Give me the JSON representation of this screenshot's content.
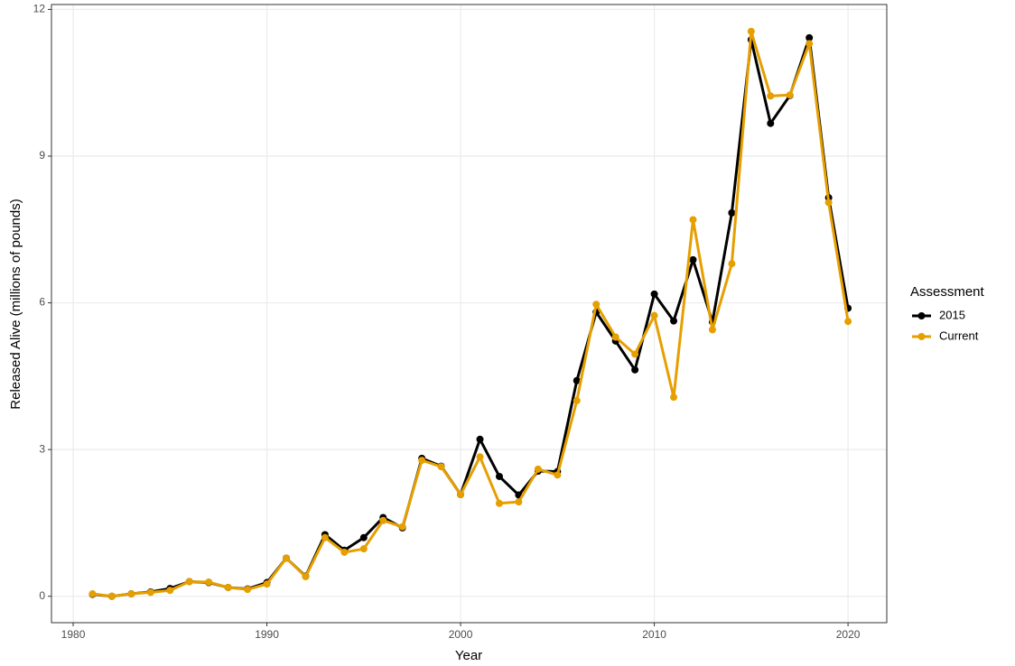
{
  "chart_data": {
    "type": "line",
    "x_label": "Year",
    "y_label": "Released Alive (millions of pounds)",
    "x": [
      1981,
      1982,
      1983,
      1984,
      1985,
      1986,
      1987,
      1988,
      1989,
      1990,
      1991,
      1992,
      1993,
      1994,
      1995,
      1996,
      1997,
      1998,
      1999,
      2000,
      2001,
      2002,
      2003,
      2004,
      2005,
      2006,
      2007,
      2008,
      2009,
      2010,
      2011,
      2012,
      2013,
      2014,
      2015,
      2016,
      2017,
      2018,
      2019,
      2020
    ],
    "series": [
      {
        "name": "2015",
        "color": "#000000",
        "values": [
          0.04,
          0.0,
          0.05,
          0.09,
          0.16,
          0.3,
          0.28,
          0.18,
          0.15,
          0.28,
          0.78,
          0.41,
          1.26,
          0.94,
          1.2,
          1.61,
          1.4,
          2.82,
          2.66,
          2.08,
          3.21,
          2.45,
          2.07,
          2.56,
          2.55,
          4.41,
          5.81,
          5.22,
          4.63,
          6.18,
          5.63,
          6.88,
          5.61,
          7.84,
          11.38,
          9.67,
          10.24,
          11.42,
          8.15,
          5.89
        ]
      },
      {
        "name": "Current",
        "color": "#E69F00",
        "values": [
          0.05,
          0.0,
          0.05,
          0.08,
          0.12,
          0.3,
          0.29,
          0.18,
          0.14,
          0.25,
          0.78,
          0.4,
          1.2,
          0.9,
          0.97,
          1.55,
          1.42,
          2.78,
          2.65,
          2.08,
          2.85,
          1.9,
          1.93,
          2.6,
          2.48,
          4.0,
          5.97,
          5.3,
          4.95,
          5.74,
          4.07,
          7.7,
          5.45,
          6.8,
          11.55,
          10.23,
          10.25,
          11.3,
          8.05,
          5.62
        ]
      }
    ],
    "legend_title": "Assessment",
    "legend": "right",
    "xlim": [
      1978.88,
      2022.0
    ],
    "xticks": [
      1980,
      1990,
      2000,
      2010,
      2020
    ],
    "ylim": [
      -0.54,
      12.1
    ],
    "yticks": [
      0,
      3,
      6,
      9,
      12
    ],
    "grid": true
  }
}
